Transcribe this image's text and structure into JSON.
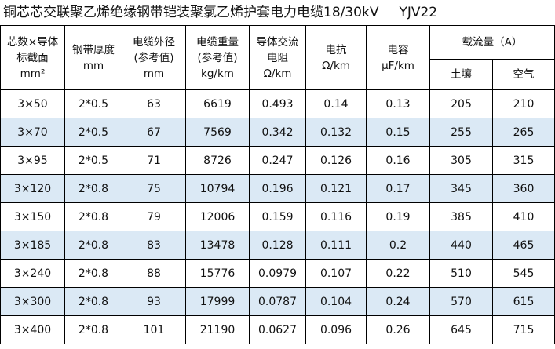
{
  "title": "铜芯芯交联聚乙烯绝缘钢带铠装聚氯乙烯护套电力电缆18/30kV",
  "model": "YJV22",
  "headers": {
    "cores": [
      "芯数×导体",
      "标截面",
      "mm²"
    ],
    "tape": [
      "钢带厚度",
      "mm"
    ],
    "diameter": [
      "电缆外径",
      "(参考值)",
      "mm"
    ],
    "weight": [
      "电缆重量",
      "(参考值)",
      "kg/km"
    ],
    "resistance": [
      "导体交流",
      "电阻",
      "Ω/km"
    ],
    "reactance": [
      "电抗",
      "Ω/km"
    ],
    "capacitance": [
      "电容",
      "μF/km"
    ],
    "ampacity": "载流量（A）",
    "soil": "土壤",
    "air": "空气"
  },
  "rows": [
    [
      "3×50",
      "2*0.5",
      "63",
      "6619",
      "0.493",
      "0.14",
      "0.13",
      "205",
      "210"
    ],
    [
      "3×70",
      "2*0.5",
      "67",
      "7569",
      "0.342",
      "0.132",
      "0.15",
      "255",
      "265"
    ],
    [
      "3×95",
      "2*0.5",
      "71",
      "8726",
      "0.247",
      "0.126",
      "0.16",
      "305",
      "315"
    ],
    [
      "3×120",
      "2*0.8",
      "75",
      "10794",
      "0.196",
      "0.121",
      "0.17",
      "345",
      "360"
    ],
    [
      "3×150",
      "2*0.8",
      "79",
      "12006",
      "0.159",
      "0.116",
      "0.19",
      "385",
      "410"
    ],
    [
      "3×185",
      "2*0.8",
      "83",
      "13478",
      "0.128",
      "0.111",
      "0.2",
      "440",
      "465"
    ],
    [
      "3×240",
      "2*0.8",
      "88",
      "15776",
      "0.0979",
      "0.107",
      "0.22",
      "510",
      "545"
    ],
    [
      "3×300",
      "2*0.8",
      "93",
      "17999",
      "0.0787",
      "0.104",
      "0.24",
      "570",
      "615"
    ],
    [
      "3×400",
      "2*0.8",
      "101",
      "21190",
      "0.0627",
      "0.096",
      "0.26",
      "645",
      "715"
    ]
  ],
  "colors": {
    "stripe": "#dbe9f5",
    "border": "#000000"
  }
}
